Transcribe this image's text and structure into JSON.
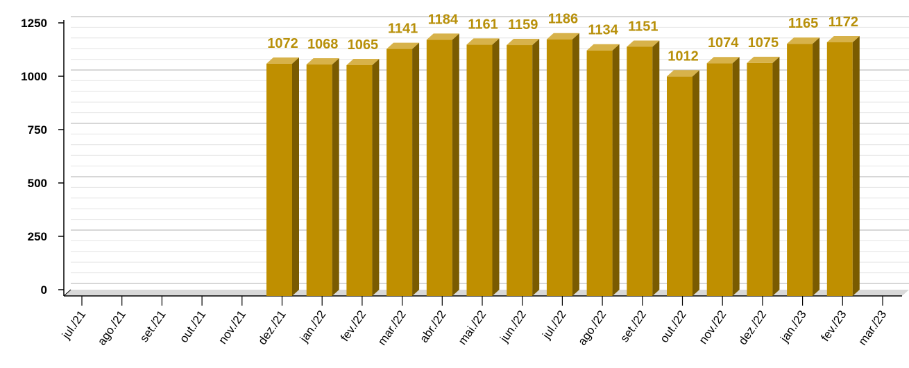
{
  "chart_data": {
    "type": "bar",
    "categories": [
      "jul./21",
      "ago./21",
      "set./21",
      "out./21",
      "nov./21",
      "dez./21",
      "jan./22",
      "fev./22",
      "mar./22",
      "abr./22",
      "mai./22",
      "jun./22",
      "jul./22",
      "ago./22",
      "set./22",
      "out./22",
      "nov./22",
      "dez./22",
      "jan./23",
      "fev./23",
      "mar./23"
    ],
    "values": [
      null,
      null,
      null,
      null,
      null,
      1072,
      1068,
      1065,
      1141,
      1184,
      1161,
      1159,
      1186,
      1134,
      1151,
      1012,
      1074,
      1075,
      1165,
      1172,
      null
    ],
    "data_labels": [
      "",
      "",
      "",
      "",
      "",
      "1072",
      "1068",
      "1065",
      "1141",
      "1184",
      "1161",
      "1159",
      "1186",
      "1134",
      "1151",
      "1012",
      "1074",
      "1075",
      "1165",
      "1172",
      ""
    ],
    "yticks": [
      0,
      250,
      500,
      750,
      1000,
      1250
    ],
    "ylim": [
      0,
      1250
    ],
    "grid": true,
    "bar_style": "3d",
    "colors": {
      "bar_front": "#bf8f00",
      "bar_side": "#7a5b00",
      "bar_top": "#d7b24a",
      "label": "#b8900a",
      "grid_major": "#bfbfbf",
      "grid_minor": "#e4e4e4",
      "floor": "#d9d9d9"
    }
  }
}
